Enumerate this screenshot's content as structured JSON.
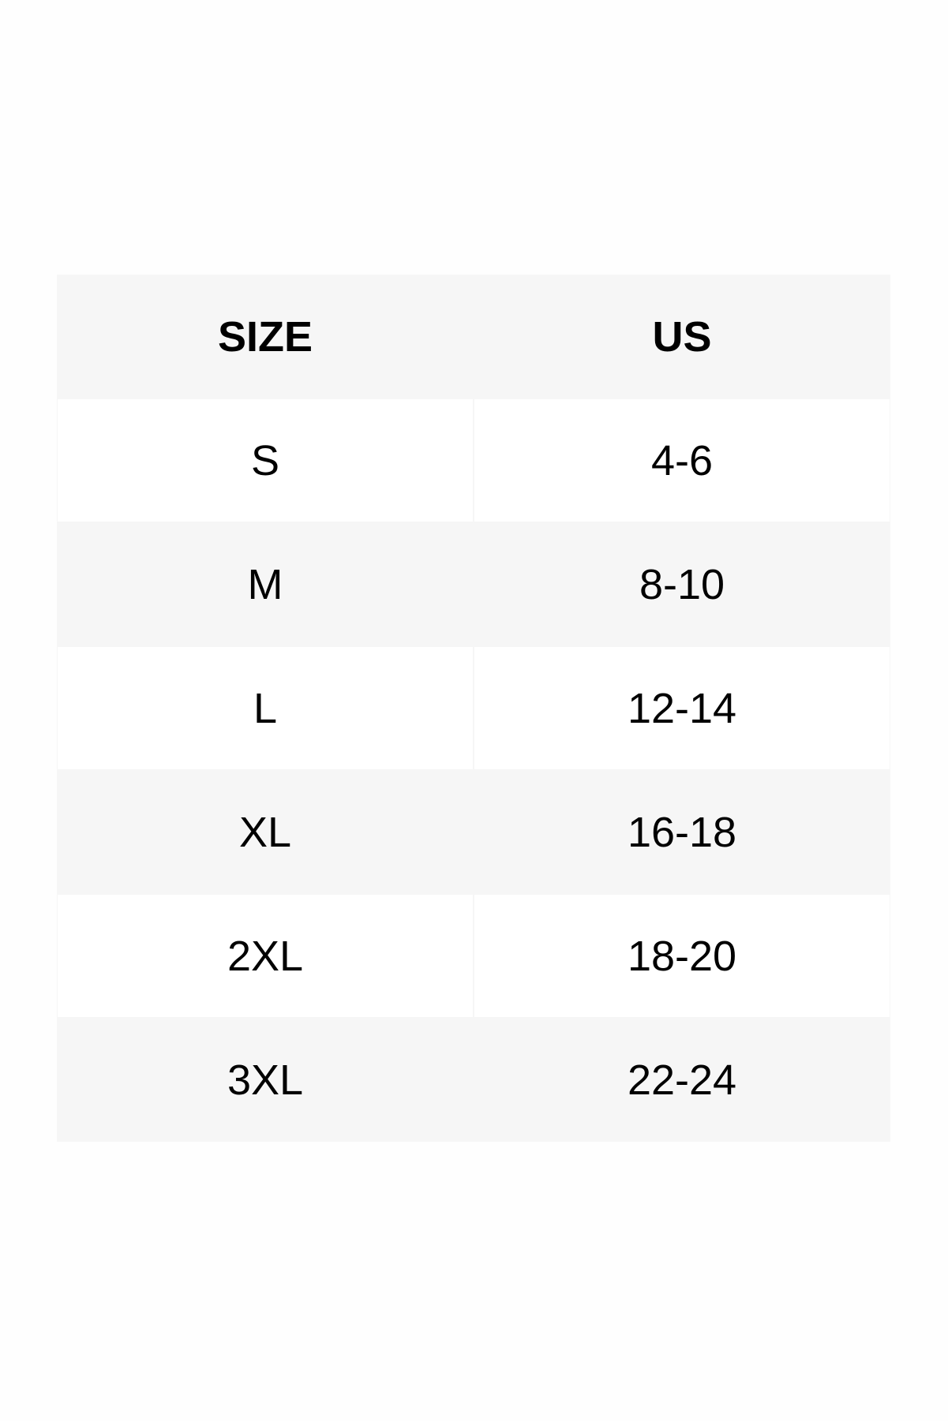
{
  "table": {
    "headers": [
      "SIZE",
      "US"
    ],
    "rows": [
      [
        "S",
        "4-6"
      ],
      [
        "M",
        "8-10"
      ],
      [
        "L",
        "12-14"
      ],
      [
        "XL",
        "16-18"
      ],
      [
        "2XL",
        "18-20"
      ],
      [
        "3XL",
        "22-24"
      ]
    ]
  },
  "colors": {
    "header_bg": "#f6f6f6",
    "alt_row_bg": "#f6f6f6",
    "row_bg": "#ffffff",
    "text": "#000000"
  }
}
